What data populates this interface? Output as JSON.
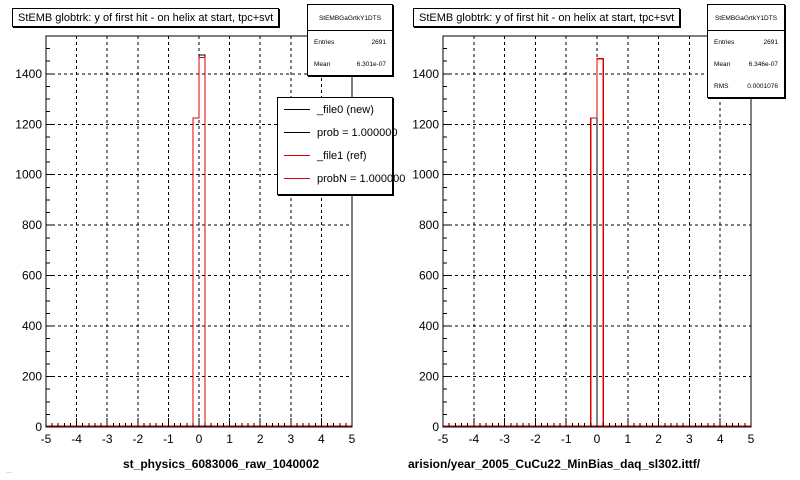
{
  "colors": {
    "new": "#000000",
    "ref": "#dd0000",
    "grid": "#000000",
    "frame": "#000000"
  },
  "chart_data": [
    {
      "type": "bar",
      "title": "StEMB globtrk: y of first hit - on helix at start, tpc+svt",
      "xlabel": "st_physics_6083006_raw_1040002",
      "ylabel": "",
      "xlim": [
        -5,
        5
      ],
      "ylim": [
        0,
        1550
      ],
      "x_ticks": [
        "-5",
        "-4",
        "-3",
        "-2",
        "-1",
        "0",
        "1",
        "2",
        "3",
        "4",
        "5"
      ],
      "y_ticks": [
        "0",
        "200",
        "400",
        "600",
        "800",
        "1000",
        "1200",
        "1400"
      ],
      "grid": true,
      "stats": {
        "name": "StEMBGaGrtkY1DTS",
        "entries_label": "Entries",
        "entries": "2691",
        "mean_label": "Mean",
        "mean": "6.301e-07"
      },
      "legend": {
        "placement": "top-right",
        "entries": [
          {
            "label": "_file0 (new)",
            "color": "#000000"
          },
          {
            "label": "prob = 1.000000",
            "color": "#000000"
          },
          {
            "label": "_file1 (ref)",
            "color": "#dd0000"
          },
          {
            "label": "probN = 1.000000",
            "color": "#dd0000"
          }
        ]
      },
      "series": [
        {
          "name": "_file0 (new)",
          "color": "#000000",
          "bins": [
            {
              "x0": -0.2,
              "x1": 0.0,
              "y": 1225
            },
            {
              "x0": 0.0,
              "x1": 0.2,
              "y": 1475
            }
          ]
        },
        {
          "name": "_file1 (ref)",
          "color": "#dd0000",
          "bins": [
            {
              "x0": -0.2,
              "x1": 0.0,
              "y": 1225
            },
            {
              "x0": 0.0,
              "x1": 0.2,
              "y": 1465
            }
          ]
        }
      ]
    },
    {
      "type": "bar",
      "title": "StEMB globtrk: y of first hit - on helix at start, tpc+svt",
      "xlabel": "arision/year_2005_CuCu22_MinBias_daq_sl302.ittf/",
      "ylabel": "",
      "xlim": [
        -5,
        5
      ],
      "ylim": [
        0,
        1550
      ],
      "x_ticks": [
        "-5",
        "-4",
        "-3",
        "-2",
        "-1",
        "0",
        "1",
        "2",
        "3",
        "4",
        "5"
      ],
      "y_ticks": [
        "0",
        "200",
        "400",
        "600",
        "800",
        "1000",
        "1200",
        "1400"
      ],
      "grid": true,
      "stats": {
        "name": "StEMBGaGrtkY1DTS",
        "entries_label": "Entries",
        "entries": "2691",
        "mean_label": "Mean",
        "mean": "6.346e-07",
        "rms_label": "RMS",
        "rms": "0.0001076"
      },
      "series": [
        {
          "name": "",
          "color": "#000000",
          "bins": [
            {
              "x0": -0.2,
              "x1": 0.0,
              "y": 1225
            }
          ]
        },
        {
          "name": "",
          "color": "#dd0000",
          "bins": [
            {
              "x0": -0.2,
              "x1": 0.0,
              "y": 1225
            },
            {
              "x0": 0.0,
              "x1": 0.2,
              "y": 1460
            }
          ]
        }
      ]
    }
  ],
  "footer": "..."
}
